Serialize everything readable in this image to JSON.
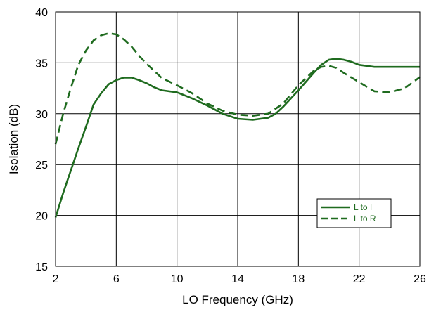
{
  "chart_data": {
    "type": "line",
    "xlabel": "LO Frequency (GHz)",
    "ylabel": "Isolation (dB)",
    "xlim": [
      2,
      26
    ],
    "ylim": [
      15,
      40
    ],
    "xticks": [
      2,
      6,
      10,
      14,
      18,
      22,
      26
    ],
    "yticks": [
      15,
      20,
      25,
      30,
      35,
      40
    ],
    "grid": true,
    "legend_position": "lower-right",
    "series_color": "#1f6b1f",
    "series": [
      {
        "name": "L to I",
        "style": "solid",
        "x": [
          2,
          2.5,
          3,
          3.5,
          4,
          4.5,
          5,
          5.5,
          6,
          6.5,
          7,
          7.5,
          8,
          8.5,
          9,
          10,
          11,
          12,
          13,
          14,
          15,
          16,
          16.5,
          17,
          18,
          19,
          19.5,
          20,
          20.5,
          21,
          21.5,
          22,
          23,
          24,
          25,
          26
        ],
        "y": [
          19.8,
          22.2,
          24.4,
          26.6,
          28.7,
          30.9,
          32.0,
          32.9,
          33.3,
          33.55,
          33.55,
          33.3,
          33.0,
          32.6,
          32.3,
          32.1,
          31.5,
          30.8,
          30.0,
          29.5,
          29.4,
          29.6,
          30.0,
          30.7,
          32.3,
          34.0,
          34.8,
          35.3,
          35.4,
          35.3,
          35.1,
          34.8,
          34.6,
          34.6,
          34.6,
          34.6
        ]
      },
      {
        "name": "L to R",
        "style": "dashed",
        "x": [
          2,
          2.5,
          3,
          3.5,
          4,
          4.5,
          5,
          5.5,
          6,
          6.5,
          7,
          7.5,
          8,
          8.5,
          9,
          10,
          11,
          12,
          13,
          14,
          15,
          16,
          17,
          18,
          19,
          19.5,
          20,
          20.5,
          21,
          22,
          23,
          24,
          25,
          26
        ],
        "y": [
          27.0,
          30.0,
          32.5,
          34.8,
          36.2,
          37.2,
          37.7,
          37.9,
          37.8,
          37.3,
          36.6,
          35.7,
          34.9,
          34.2,
          33.5,
          32.8,
          32.0,
          31.0,
          30.3,
          29.9,
          29.8,
          30.0,
          31.0,
          32.8,
          34.2,
          34.6,
          34.7,
          34.5,
          34.0,
          33.1,
          32.2,
          32.1,
          32.5,
          33.6
        ]
      }
    ]
  }
}
